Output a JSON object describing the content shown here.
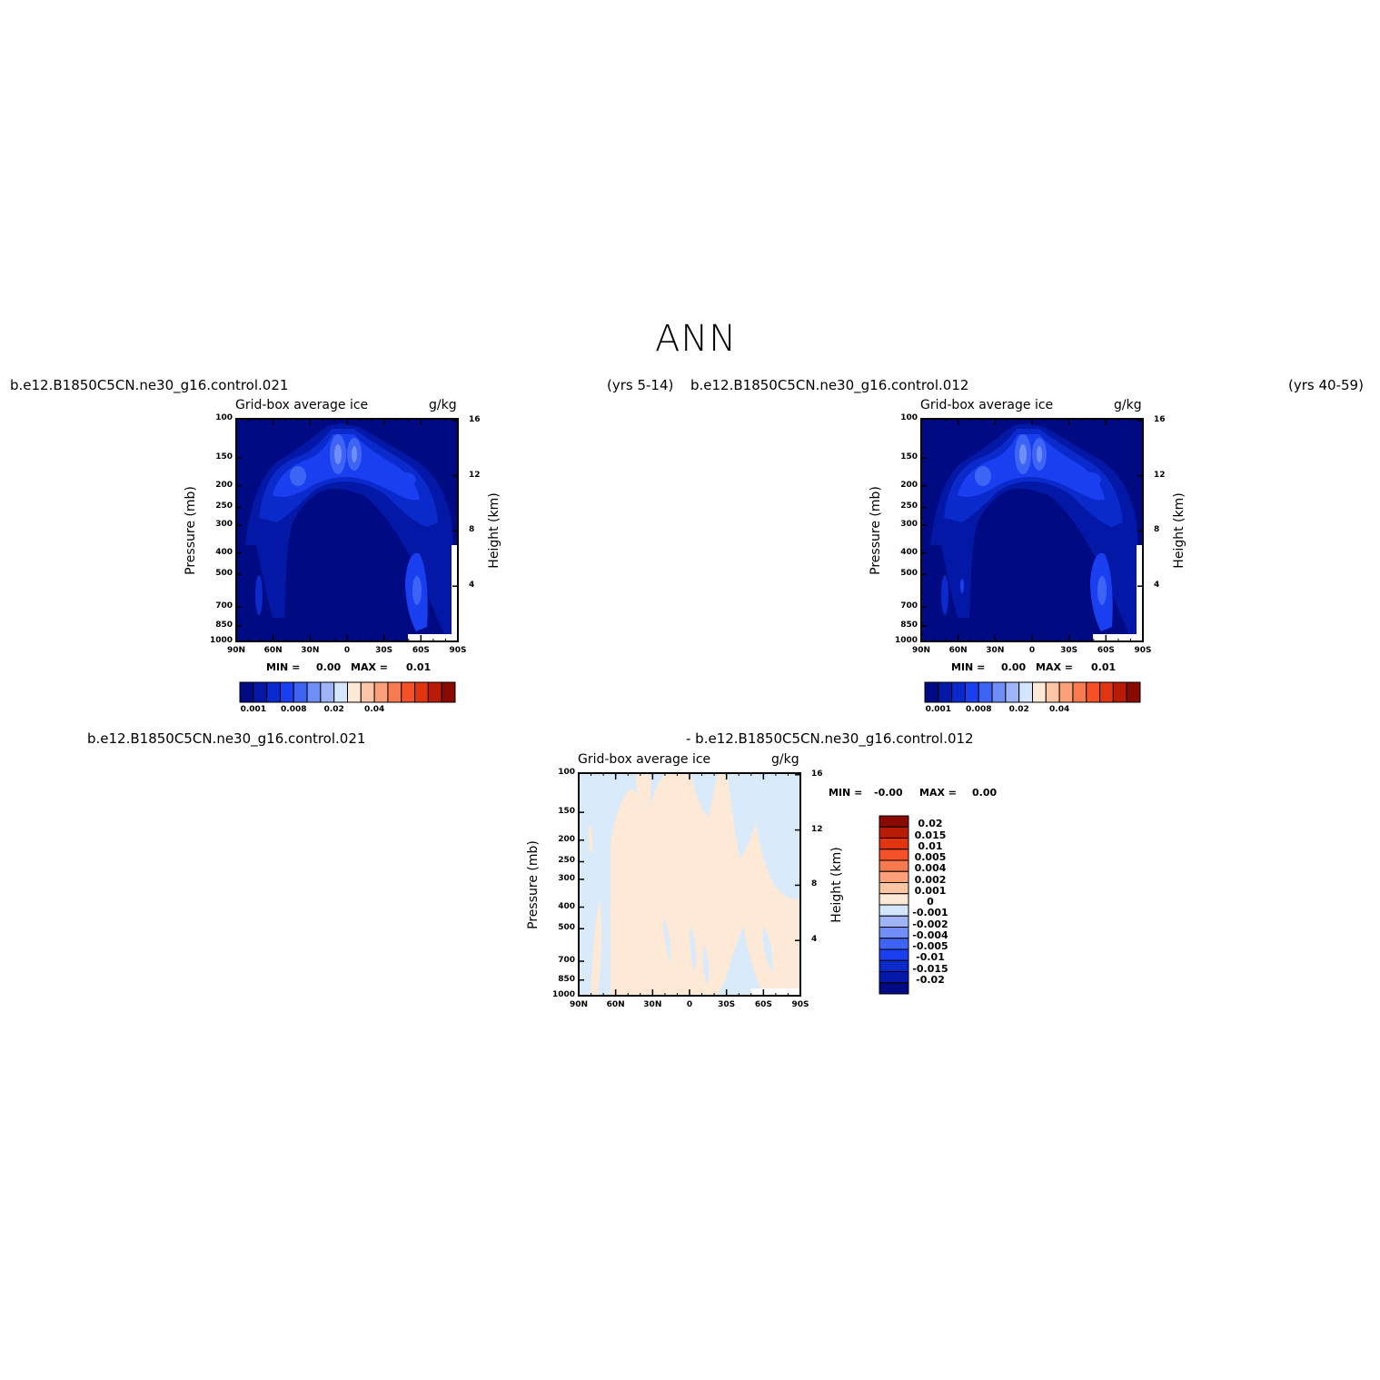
{
  "figure": {
    "title": "ANN"
  },
  "panels": {
    "top_left": {
      "case_name": "b.e12.B1850C5CN.ne30_g16.control.021",
      "years": "(yrs 5-14)",
      "field_title": "Grid-box average ice",
      "units": "g/kg",
      "min_label": "MIN =",
      "min_value": "0.00",
      "max_label": "MAX =",
      "max_value": "0.01"
    },
    "top_right": {
      "case_name": "b.e12.B1850C5CN.ne30_g16.control.012",
      "years": "(yrs 40-59)",
      "field_title": "Grid-box average ice",
      "units": "g/kg",
      "min_label": "MIN =",
      "min_value": "0.00",
      "max_label": "MAX =",
      "max_value": "0.01"
    },
    "bottom": {
      "case_name_left": "b.e12.B1850C5CN.ne30_g16.control.021",
      "case_name_right": "- b.e12.B1850C5CN.ne30_g16.control.012",
      "field_title": "Grid-box average ice",
      "units": "g/kg",
      "min_label": "MIN =",
      "min_value": "-0.00",
      "max_label": "MAX =",
      "max_value": "0.00"
    }
  },
  "axes": {
    "ylabel_left": "Pressure (mb)",
    "ylabel_right": "Height (km)",
    "pressure_ticks": [
      "100",
      "150",
      "200",
      "250",
      "300",
      "400",
      "500",
      "700",
      "850",
      "1000"
    ],
    "height_ticks": [
      "16",
      "12",
      "8",
      "4"
    ],
    "lat_ticks": [
      "90N",
      "60N",
      "30N",
      "0",
      "30S",
      "60S",
      "90S"
    ]
  },
  "colorbar_abs": {
    "labels": [
      "0.001",
      "0.008",
      "0.02",
      "0.04"
    ],
    "colors": [
      "#000a82",
      "#0318a6",
      "#0a2acc",
      "#1a3ff0",
      "#3e64f5",
      "#6f8ef7",
      "#9fb3f8",
      "#d4e6fb",
      "#fde9d6",
      "#fcc6a6",
      "#fba079",
      "#f97a4f",
      "#f55128",
      "#e33410",
      "#b91c06",
      "#8b0a00"
    ]
  },
  "colorbar_diff": {
    "labels": [
      "0.02",
      "0.015",
      "0.01",
      "0.005",
      "0.004",
      "0.002",
      "0.001",
      "0",
      "-0.001",
      "-0.002",
      "-0.004",
      "-0.005",
      "-0.01",
      "-0.015",
      "-0.02"
    ],
    "colors": [
      "#8b0a00",
      "#b91c06",
      "#e33410",
      "#f55128",
      "#f97a4f",
      "#fba079",
      "#fcc6a6",
      "#fde9d6",
      "#d4e6fb",
      "#9fb3f8",
      "#6f8ef7",
      "#3e64f5",
      "#1a3ff0",
      "#0a2acc",
      "#0318a6",
      "#000a82"
    ]
  },
  "chart_data": [
    {
      "type": "heatmap",
      "panel": "top_left",
      "title": "Grid-box average ice",
      "units": "g/kg",
      "xlabel": "",
      "ylabel": "Pressure (mb)",
      "ylabel_right": "Height (km)",
      "x_ticks": [
        "90N",
        "60N",
        "30N",
        "0",
        "30S",
        "60S",
        "90S"
      ],
      "y_ticks": [
        100,
        150,
        200,
        250,
        300,
        400,
        500,
        700,
        850,
        1000
      ],
      "y_range": [
        1000,
        100
      ],
      "contour_levels": [
        0.001,
        0.002,
        0.004,
        0.006,
        0.008,
        0.01,
        0.015,
        0.02,
        0.025,
        0.03,
        0.035,
        0.04,
        0.045,
        0.05,
        0.06
      ],
      "min": 0.0,
      "max": 0.01
    },
    {
      "type": "heatmap",
      "panel": "top_right",
      "title": "Grid-box average ice",
      "units": "g/kg",
      "xlabel": "",
      "ylabel": "Pressure (mb)",
      "ylabel_right": "Height (km)",
      "x_ticks": [
        "90N",
        "60N",
        "30N",
        "0",
        "30S",
        "60S",
        "90S"
      ],
      "y_ticks": [
        100,
        150,
        200,
        250,
        300,
        400,
        500,
        700,
        850,
        1000
      ],
      "y_range": [
        1000,
        100
      ],
      "min": 0.0,
      "max": 0.01
    },
    {
      "type": "heatmap",
      "panel": "bottom",
      "title": "Grid-box average ice",
      "units": "g/kg",
      "xlabel": "",
      "ylabel": "Pressure (mb)",
      "ylabel_right": "Height (km)",
      "x_ticks": [
        "90N",
        "60N",
        "30N",
        "0",
        "30S",
        "60S",
        "90S"
      ],
      "y_ticks": [
        100,
        150,
        200,
        250,
        300,
        400,
        500,
        700,
        850,
        1000
      ],
      "y_range": [
        1000,
        100
      ],
      "contour_levels": [
        -0.02,
        -0.015,
        -0.01,
        -0.005,
        -0.004,
        -0.002,
        -0.001,
        0,
        0.001,
        0.002,
        0.004,
        0.005,
        0.01,
        0.015,
        0.02
      ],
      "min": -0.0,
      "max": 0.0
    }
  ]
}
